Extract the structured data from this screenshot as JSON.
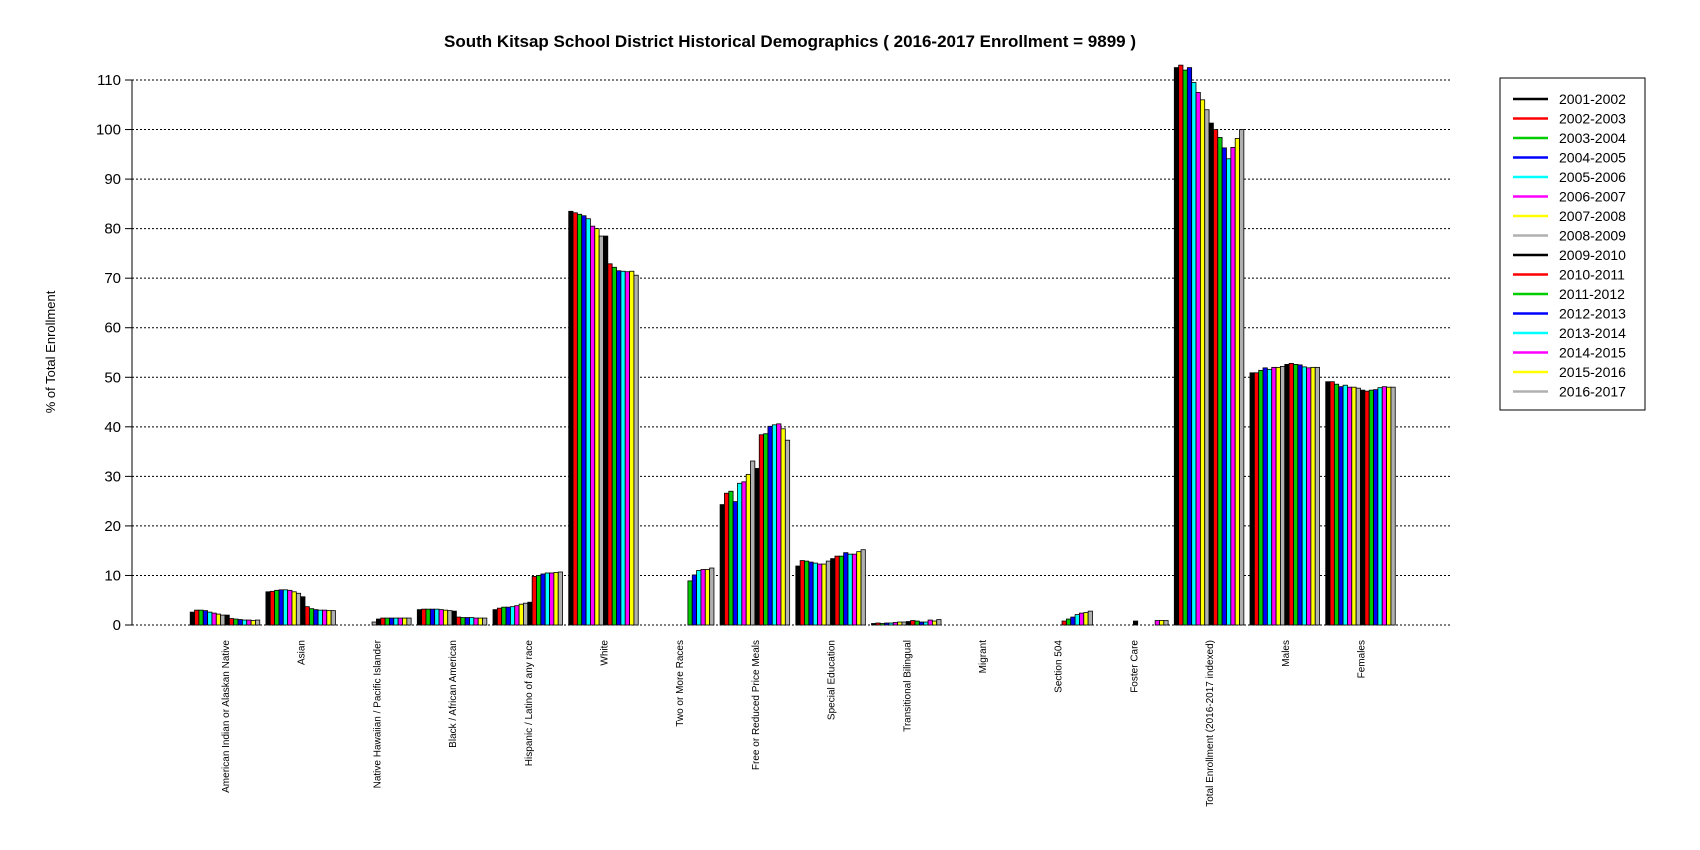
{
  "chart_data": {
    "type": "bar",
    "title": "South Kitsap School District Historical Demographics  ( 2016-2017 Enrollment =  9899 )",
    "xlabel": "",
    "ylabel": "% of Total Enrollment",
    "ylim": [
      0,
      110
    ],
    "yticks": [
      0,
      10,
      20,
      30,
      40,
      50,
      60,
      70,
      80,
      90,
      100,
      110
    ],
    "grid": "horizontal dotted",
    "legend_position": "top-right",
    "categories": [
      "American Indian or Alaskan Native",
      "Asian",
      "Native Hawaiian / Pacific Islander",
      "Black / African American",
      "Hispanic / Latino of any race",
      "White",
      "Two or More Races",
      "Free or Reduced Price Meals",
      "Special Education",
      "Transitional Bilingual",
      "Migrant",
      "Section 504",
      "Foster Care",
      "Total Enrollment (2016-2017 indexed)",
      "Males",
      "Females"
    ],
    "series": [
      {
        "name": "2001-2002",
        "color": "#000000",
        "values": [
          2.6,
          6.7,
          null,
          3.1,
          3.1,
          83.5,
          null,
          24.3,
          11.9,
          0.3,
          0,
          null,
          null,
          112.5,
          50.9,
          49.1
        ]
      },
      {
        "name": "2002-2003",
        "color": "#ff0000",
        "values": [
          3.0,
          6.8,
          null,
          3.2,
          3.4,
          83.2,
          null,
          26.6,
          13.0,
          0.4,
          0,
          null,
          null,
          113.0,
          50.9,
          49.1
        ]
      },
      {
        "name": "2003-2004",
        "color": "#00cc00",
        "values": [
          3.0,
          7.0,
          null,
          3.2,
          3.6,
          82.9,
          null,
          27.0,
          12.9,
          0.3,
          0,
          null,
          null,
          112.0,
          51.4,
          48.6
        ]
      },
      {
        "name": "2004-2005",
        "color": "#0000ff",
        "values": [
          2.9,
          7.1,
          null,
          3.2,
          3.6,
          82.6,
          null,
          24.9,
          12.7,
          0.4,
          0,
          null,
          null,
          112.5,
          51.9,
          48.1
        ]
      },
      {
        "name": "2005-2006",
        "color": "#00ffff",
        "values": [
          2.6,
          7.1,
          null,
          3.2,
          3.7,
          82.0,
          null,
          28.6,
          12.5,
          0.4,
          0,
          null,
          null,
          109.5,
          51.6,
          48.4
        ]
      },
      {
        "name": "2006-2007",
        "color": "#ff00ff",
        "values": [
          2.4,
          7.0,
          null,
          3.1,
          3.9,
          80.5,
          null,
          28.9,
          12.3,
          0.5,
          0,
          null,
          null,
          107.5,
          52.0,
          48.0
        ]
      },
      {
        "name": "2007-2008",
        "color": "#ffff00",
        "values": [
          2.2,
          6.7,
          null,
          3.0,
          4.2,
          80.0,
          null,
          30.4,
          12.3,
          0.6,
          0,
          null,
          null,
          106.0,
          52.0,
          48.0
        ]
      },
      {
        "name": "2008-2009",
        "color": "#b0b0b0",
        "values": [
          2.0,
          6.4,
          0.6,
          2.9,
          4.4,
          78.5,
          null,
          33.1,
          12.9,
          0.6,
          0,
          null,
          null,
          104.0,
          52.2,
          47.8
        ]
      },
      {
        "name": "2009-2010",
        "color": "#000000",
        "values": [
          2.0,
          5.7,
          1.2,
          2.8,
          4.6,
          78.5,
          null,
          31.6,
          13.4,
          0.7,
          0,
          null,
          0.8,
          101.3,
          52.6,
          47.4
        ]
      },
      {
        "name": "2010-2011",
        "color": "#ff0000",
        "values": [
          1.3,
          3.7,
          1.4,
          1.6,
          9.8,
          72.9,
          null,
          38.4,
          13.9,
          0.9,
          0,
          0.8,
          null,
          100.0,
          52.8,
          47.2
        ]
      },
      {
        "name": "2011-2012",
        "color": "#00cc00",
        "values": [
          1.2,
          3.3,
          1.4,
          1.5,
          10.0,
          72.2,
          8.9,
          38.6,
          13.9,
          0.8,
          0,
          1.2,
          null,
          98.4,
          52.6,
          47.4
        ]
      },
      {
        "name": "2012-2013",
        "color": "#0000ff",
        "values": [
          1.1,
          3.1,
          1.4,
          1.5,
          10.3,
          71.5,
          10.1,
          40.1,
          14.6,
          0.6,
          0,
          1.6,
          null,
          96.3,
          52.5,
          47.5
        ]
      },
      {
        "name": "2013-2014",
        "color": "#00ffff",
        "values": [
          1.0,
          3.0,
          1.4,
          1.5,
          10.5,
          71.4,
          11.0,
          40.4,
          14.3,
          0.6,
          0,
          2.1,
          null,
          94.1,
          52.1,
          47.9
        ]
      },
      {
        "name": "2014-2015",
        "color": "#ff00ff",
        "values": [
          1.0,
          3.0,
          1.4,
          1.4,
          10.5,
          71.3,
          11.2,
          40.6,
          14.3,
          1.0,
          0,
          2.4,
          0.9,
          96.4,
          51.9,
          48.1
        ]
      },
      {
        "name": "2015-2016",
        "color": "#ffff00",
        "values": [
          0.9,
          2.9,
          1.4,
          1.4,
          10.6,
          71.4,
          11.2,
          39.6,
          14.8,
          0.8,
          0,
          2.5,
          0.9,
          98.2,
          52.0,
          48.0
        ]
      },
      {
        "name": "2016-2017",
        "color": "#b0b0b0",
        "values": [
          1.0,
          2.9,
          1.4,
          1.4,
          10.7,
          70.6,
          11.5,
          37.3,
          15.2,
          1.1,
          0,
          2.8,
          0.9,
          100.0,
          52.0,
          48.0
        ]
      }
    ]
  }
}
